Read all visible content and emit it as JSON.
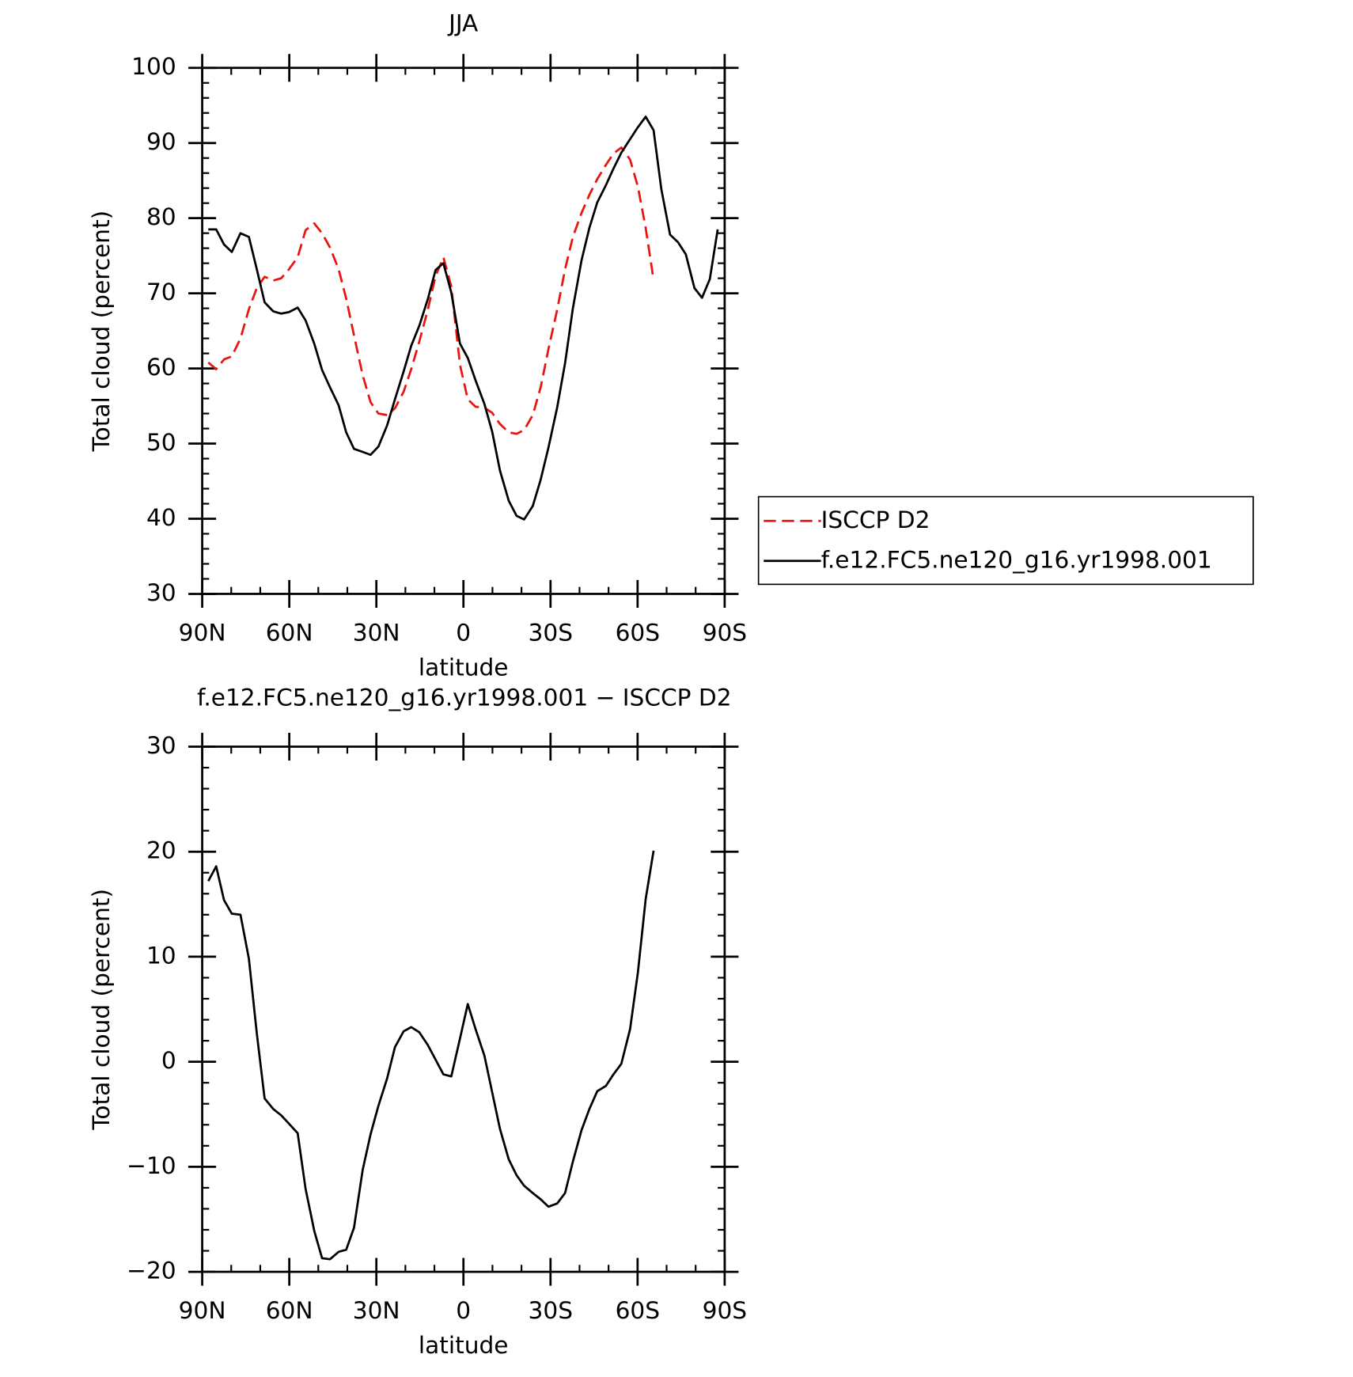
{
  "chart_data": [
    {
      "type": "line",
      "title": "JJA",
      "xlabel": "latitude",
      "ylabel": "Total cloud (percent)",
      "x": [
        87.9,
        85.2,
        82.5,
        79.8,
        76.8,
        73.9,
        71.2,
        68.5,
        65.5,
        62.8,
        60.1,
        57.1,
        54.4,
        51.4,
        48.7,
        46,
        43,
        40.4,
        37.7,
        34.7,
        32,
        29.3,
        26.3,
        23.6,
        20.6,
        18,
        15.2,
        12.3,
        9.6,
        6.9,
        4.2,
        1.2,
        -1.5,
        -4.2,
        -7.2,
        -9.9,
        -12.6,
        -15.6,
        -18.3,
        -20.9,
        -23.9,
        -26.6,
        -29.3,
        -32.3,
        -35,
        -37.7,
        -40.7,
        -43.4,
        -46.1,
        -49.1,
        -51.7,
        -54.4,
        -57.4,
        -60.1,
        -62.8,
        -65.5,
        -68.2,
        -71.2,
        -73.9,
        -76.6,
        -79.6,
        -82.2,
        -84.9,
        -87.6
      ],
      "xlim": [
        90,
        -90
      ],
      "xticks": [
        {
          "value": 90,
          "label": "90N"
        },
        {
          "value": 60,
          "label": "60N"
        },
        {
          "value": 30,
          "label": "30N"
        },
        0,
        {
          "value": -30,
          "label": "30S"
        },
        {
          "value": -60,
          "label": "60S"
        },
        {
          "value": -90,
          "label": "90S"
        }
      ],
      "xminorticks": [
        80,
        70,
        50,
        40,
        20,
        10,
        -10,
        -20,
        -40,
        -50,
        -70,
        -80
      ],
      "ylim": [
        30,
        100
      ],
      "yticks": [
        30,
        40,
        50,
        60,
        70,
        80,
        90,
        100
      ],
      "yminorticks": [
        32,
        34,
        36,
        38,
        42,
        44,
        46,
        48,
        52,
        54,
        56,
        58,
        62,
        64,
        66,
        68,
        72,
        74,
        76,
        78,
        82,
        84,
        86,
        88,
        92,
        94,
        96,
        98
      ],
      "legend": "right",
      "series": [
        {
          "name": "ISCCP D2",
          "color": "#e8150f",
          "linestyle": "dashed",
          "values": [
            60.8,
            59.9,
            61.2,
            61.6,
            64,
            67.9,
            70.7,
            72.2,
            71.7,
            72,
            73.2,
            74.8,
            78.4,
            79.3,
            78,
            76.1,
            73.2,
            69.3,
            64.4,
            59.1,
            55.5,
            54,
            53.8,
            54.7,
            56.9,
            59.9,
            63.6,
            67.8,
            72.3,
            74.8,
            70.9,
            60.5,
            55.9,
            54.9,
            54.8,
            54.1,
            52.6,
            51.5,
            51.3,
            51.8,
            53.8,
            57.5,
            62.6,
            67.8,
            73.2,
            77.5,
            80.7,
            83.1,
            85.2,
            87.1,
            88.6,
            89.4,
            87.8,
            84.2,
            78.7,
            71.8,
            null,
            null,
            null,
            null,
            null,
            null,
            null,
            null
          ]
        },
        {
          "name": "f.e12.FC5.ne120_g16.yr1998.001",
          "color": "#000000",
          "linestyle": "solid",
          "values": [
            78.5,
            78.5,
            76.5,
            75.5,
            78,
            77.5,
            73.2,
            68.8,
            67.6,
            67.3,
            67.5,
            68.1,
            66.4,
            63.3,
            59.8,
            57.5,
            55.1,
            51.5,
            49.3,
            48.9,
            48.5,
            49.6,
            52.4,
            55.9,
            59.6,
            63,
            65.7,
            69.2,
            73.1,
            74,
            70.1,
            63.3,
            61.4,
            58.4,
            55.3,
            51.6,
            46.4,
            42.4,
            40.4,
            39.9,
            41.7,
            45.2,
            49.5,
            54.8,
            60.7,
            68,
            74.4,
            78.7,
            82.1,
            84.4,
            86.6,
            88.7,
            90.5,
            92.1,
            93.5,
            91.7,
            83.8,
            77.8,
            76.8,
            75.2,
            70.7,
            69.4,
            71.9,
            78.5
          ]
        }
      ]
    },
    {
      "type": "line",
      "title": "f.e12.FC5.ne120_g16.yr1998.001 − ISCCP D2",
      "xlabel": "latitude",
      "ylabel": "Total cloud (percent)",
      "x": [
        87.9,
        85.2,
        82.5,
        79.8,
        76.8,
        73.9,
        71.2,
        68.5,
        65.5,
        62.8,
        60.1,
        57.1,
        54.4,
        51.4,
        48.7,
        46,
        43,
        40.4,
        37.7,
        34.7,
        32,
        29.3,
        26.3,
        23.6,
        20.6,
        18,
        15.2,
        12.3,
        9.6,
        6.9,
        4.2,
        1.2,
        -1.5,
        -4.2,
        -7.2,
        -9.9,
        -12.6,
        -15.6,
        -18.3,
        -20.9,
        -23.9,
        -26.6,
        -29.3,
        -32.3,
        -35,
        -37.7,
        -40.7,
        -43.4,
        -46.1,
        -49.1,
        -51.7,
        -54.4,
        -57.4,
        -60.1,
        -62.8,
        -65.5,
        -68.2,
        -71.2,
        -73.9,
        -76.6,
        -79.6,
        -82.2,
        -84.9,
        -87.6
      ],
      "xlim": [
        90,
        -90
      ],
      "xticks": [
        {
          "value": 90,
          "label": "90N"
        },
        {
          "value": 60,
          "label": "60N"
        },
        {
          "value": 30,
          "label": "30N"
        },
        0,
        {
          "value": -30,
          "label": "30S"
        },
        {
          "value": -60,
          "label": "60S"
        },
        {
          "value": -90,
          "label": "90S"
        }
      ],
      "xminorticks": [
        80,
        70,
        50,
        40,
        20,
        10,
        -10,
        -20,
        -40,
        -50,
        -70,
        -80
      ],
      "ylim": [
        -20,
        30
      ],
      "yticks": [
        {
          "value": -20,
          "label": "−20"
        },
        {
          "value": -10,
          "label": "−10"
        },
        0,
        10,
        20,
        30
      ],
      "yminorticks": [
        -18,
        -16,
        -14,
        -12,
        -8,
        -6,
        -4,
        -2,
        2,
        4,
        6,
        8,
        12,
        14,
        16,
        18,
        22,
        24,
        26,
        28
      ],
      "series": [
        {
          "color": "#000000",
          "linestyle": "solid",
          "values": [
            17.2,
            18.6,
            15.4,
            14.1,
            14,
            9.8,
            2.7,
            -3.5,
            -4.5,
            -5.1,
            -5.9,
            -6.8,
            -12.1,
            -16.1,
            -18.7,
            -18.8,
            -18.1,
            -17.9,
            -15.8,
            -10.3,
            -6.9,
            -4.2,
            -1.6,
            1.4,
            2.9,
            3.3,
            2.8,
            1.6,
            0.2,
            -1.2,
            -1.4,
            2.2,
            5.5,
            3.1,
            0.6,
            -2.9,
            -6.4,
            -9.3,
            -10.8,
            -11.8,
            -12.5,
            -13.1,
            -13.8,
            -13.5,
            -12.5,
            -9.5,
            -6.5,
            -4.5,
            -2.8,
            -2.3,
            -1.2,
            -0.2,
            3.1,
            8.5,
            15.5,
            20.1,
            null,
            null,
            null,
            null,
            null,
            null,
            null,
            null
          ]
        }
      ]
    }
  ]
}
